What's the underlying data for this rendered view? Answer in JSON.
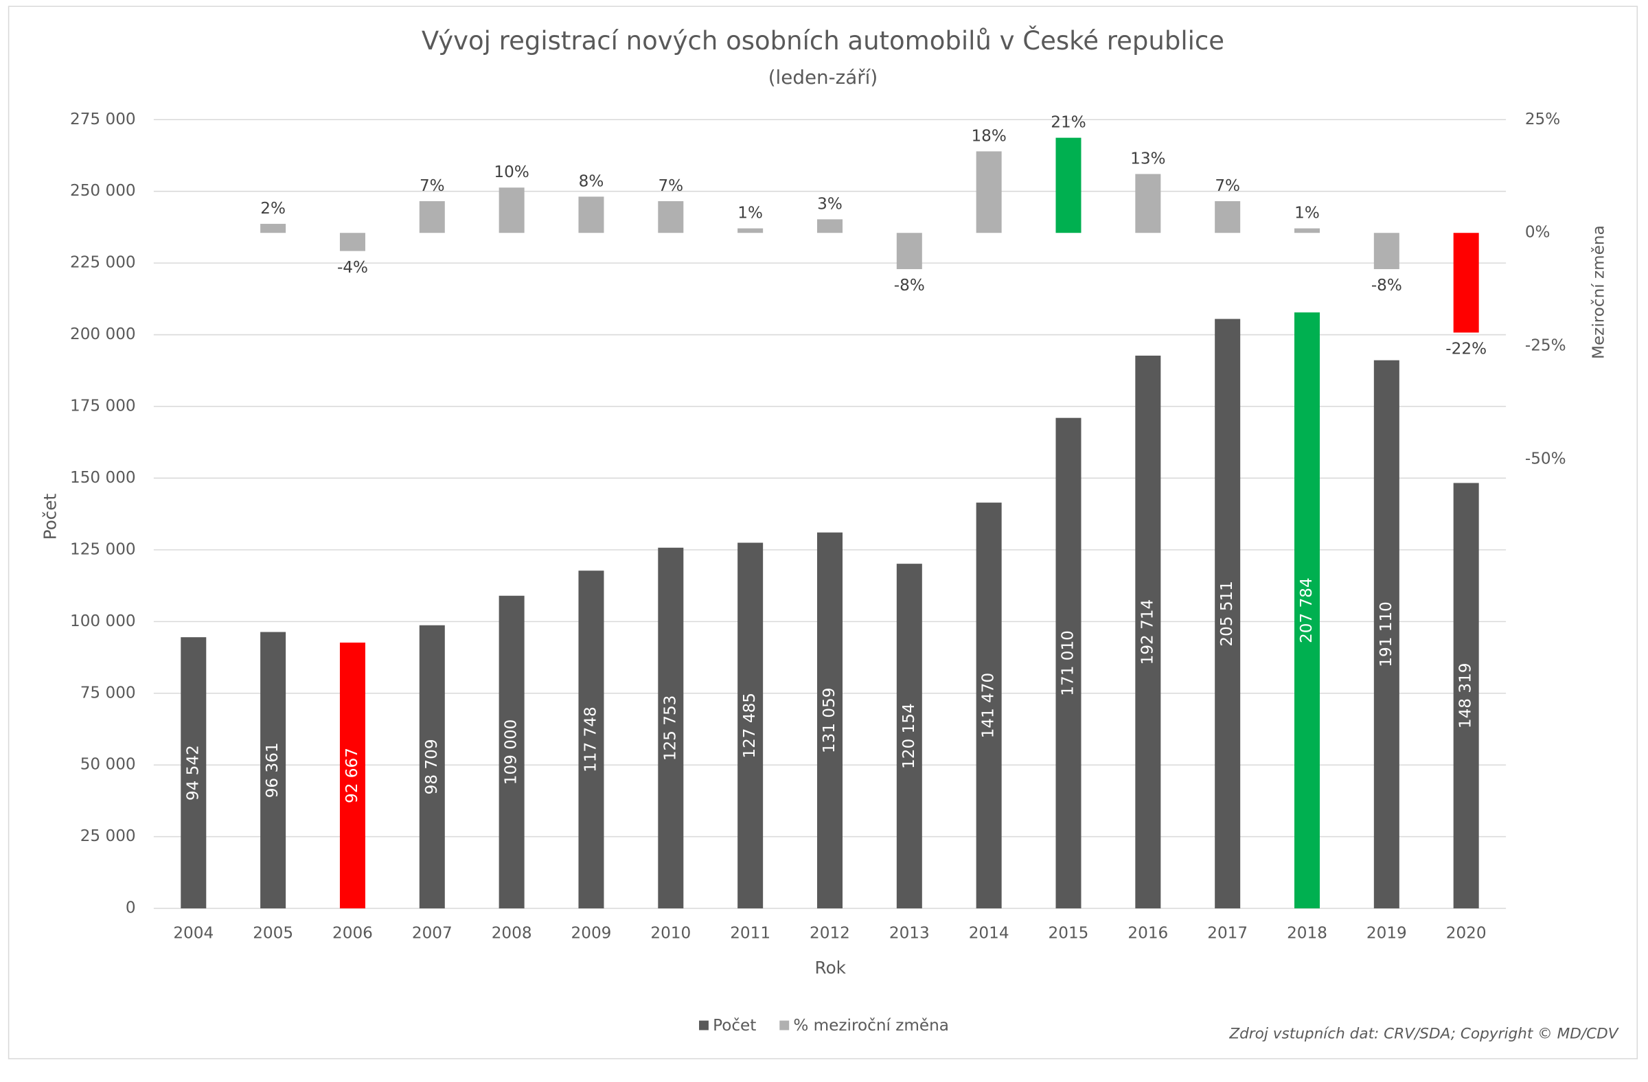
{
  "chart_data": {
    "type": "bar",
    "title": "Vývoj registrací nových osobních automobilů v České republice",
    "subtitle": "(leden-září)",
    "x_label": "Rok",
    "y_label": "Počet",
    "y2_label": "Meziroční změna",
    "source": "Zdroj vstupních dat: CRV/SDA; Copyright © MD/CDV",
    "categories": [
      "2004",
      "2005",
      "2006",
      "2007",
      "2008",
      "2009",
      "2010",
      "2011",
      "2012",
      "2013",
      "2014",
      "2015",
      "2016",
      "2017",
      "2018",
      "2019",
      "2020"
    ],
    "series": [
      {
        "name": "Počet",
        "color": "#595959",
        "colors": [
          "#595959",
          "#595959",
          "#ff0000",
          "#595959",
          "#595959",
          "#595959",
          "#595959",
          "#595959",
          "#595959",
          "#595959",
          "#595959",
          "#595959",
          "#595959",
          "#595959",
          "#00b050",
          "#595959",
          "#595959"
        ],
        "values": [
          94542,
          96361,
          92667,
          98709,
          109000,
          117748,
          125753,
          127485,
          131059,
          120154,
          141470,
          171010,
          192714,
          205511,
          207784,
          191110,
          148319
        ],
        "value_labels": [
          "94 542",
          "96 361",
          "92 667",
          "98 709",
          "109 000",
          "117 748",
          "125 753",
          "127 485",
          "131 059",
          "120 154",
          "141 470",
          "171 010",
          "192 714",
          "205 511",
          "207 784",
          "191 110",
          "148 319"
        ]
      },
      {
        "name": "% meziroční změna",
        "color": "#b0b0b0",
        "axis": "y2",
        "colors": [
          "#b0b0b0",
          "#b0b0b0",
          "#b0b0b0",
          "#b0b0b0",
          "#b0b0b0",
          "#b0b0b0",
          "#b0b0b0",
          "#b0b0b0",
          "#b0b0b0",
          "#b0b0b0",
          "#b0b0b0",
          "#00b050",
          "#b0b0b0",
          "#b0b0b0",
          "#b0b0b0",
          "#b0b0b0",
          "#ff0000"
        ],
        "values": [
          null,
          2,
          -4,
          7,
          10,
          8,
          7,
          1,
          3,
          -8,
          18,
          21,
          13,
          7,
          1,
          -8,
          -22
        ],
        "value_labels": [
          null,
          "2%",
          "-4%",
          "7%",
          "10%",
          "8%",
          "7%",
          "1%",
          "3%",
          "-8%",
          "18%",
          "21%",
          "13%",
          "7%",
          "1%",
          "-8%",
          "-22%"
        ]
      }
    ],
    "ylim": [
      0,
      275000
    ],
    "yticks": [
      {
        "value": 0,
        "label": "0"
      },
      {
        "value": 25000,
        "label": "25 000"
      },
      {
        "value": 50000,
        "label": "50 000"
      },
      {
        "value": 75000,
        "label": "75 000"
      },
      {
        "value": 100000,
        "label": "100 000"
      },
      {
        "value": 125000,
        "label": "125 000"
      },
      {
        "value": 150000,
        "label": "150 000"
      },
      {
        "value": 175000,
        "label": "175 000"
      },
      {
        "value": 200000,
        "label": "200 000"
      },
      {
        "value": 225000,
        "label": "225 000"
      },
      {
        "value": 250000,
        "label": "250 000"
      },
      {
        "value": 275000,
        "label": "275 000"
      }
    ],
    "y2lim": [
      -149.1,
      25
    ],
    "y2ticks": [
      {
        "value": 25,
        "label": "25%"
      },
      {
        "value": 0,
        "label": "0%"
      },
      {
        "value": -25,
        "label": "-25%"
      },
      {
        "value": -50,
        "label": "-50%"
      }
    ],
    "grid": true,
    "legend": "bottom"
  }
}
